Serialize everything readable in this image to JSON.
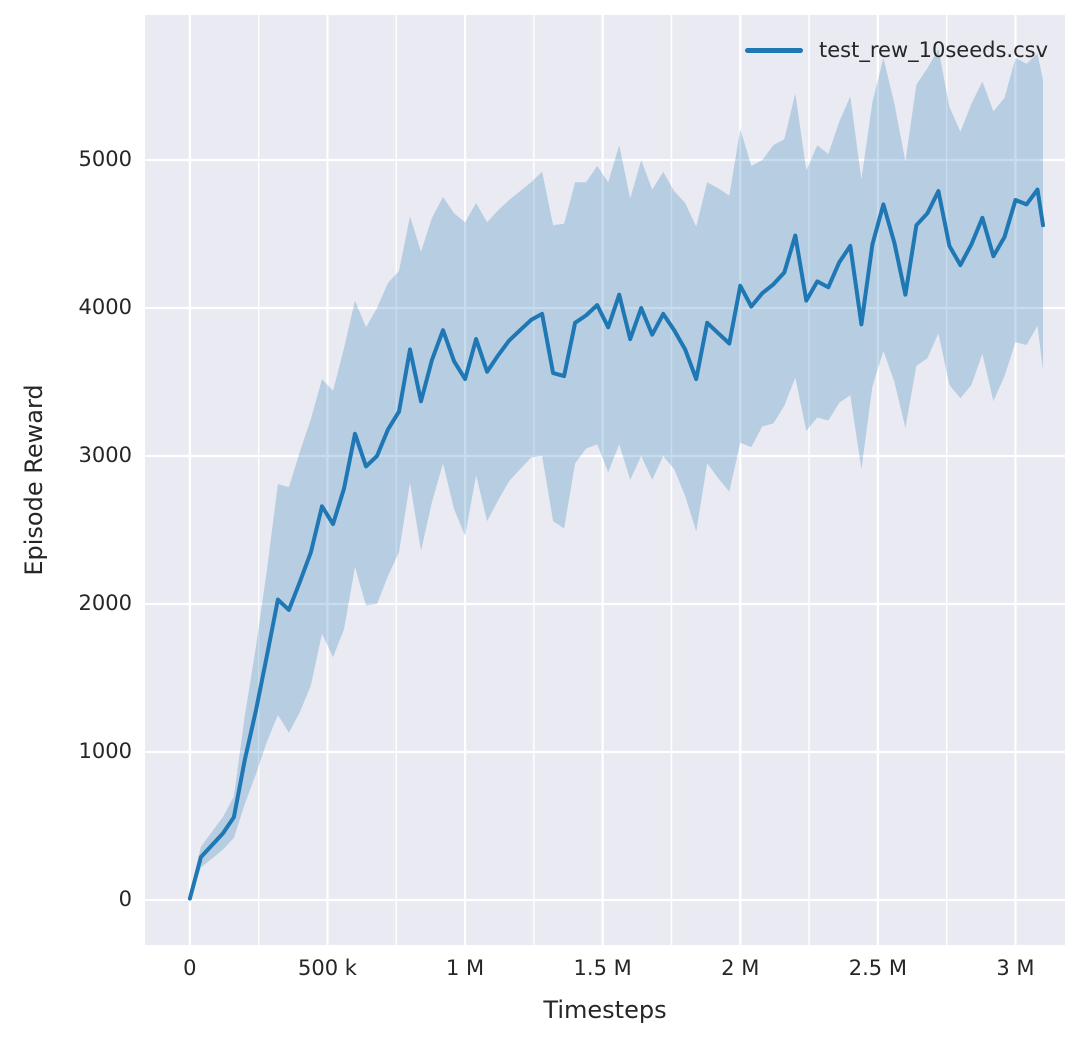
{
  "figure": {
    "bg_color": "#ffffff",
    "axes_bg_color": "#eaeaf2",
    "grid_color": "#ffffff",
    "line_color": "#1f77b4",
    "band_opacity": 0.25,
    "text_color": "#262626"
  },
  "chart_data": {
    "type": "line",
    "title": "",
    "xlabel": "Timesteps",
    "ylabel": "Episode Reward",
    "legend": [
      "test_rew_10seeds.csv"
    ],
    "legend_position": "upper right",
    "grid": "on",
    "xlim": [
      -163000,
      3180000
    ],
    "ylim": [
      -304,
      5980
    ],
    "xticks": {
      "values": [
        0,
        500000,
        1000000,
        1500000,
        2000000,
        2500000,
        3000000
      ],
      "labels": [
        "0",
        "500 k",
        "1 M",
        "1.5 M",
        "2 M",
        "2.5 M",
        "3 M"
      ],
      "minor_step": 250000,
      "minor_max": 3000000
    },
    "yticks": {
      "values": [
        0,
        1000,
        2000,
        3000,
        4000,
        5000
      ],
      "labels": [
        "0",
        "1000",
        "2000",
        "3000",
        "4000",
        "5000"
      ]
    },
    "series": [
      {
        "name": "test_rew_10seeds.csv",
        "x": [
          0,
          40000,
          80000,
          120000,
          160000,
          200000,
          240000,
          280000,
          320000,
          360000,
          400000,
          440000,
          480000,
          520000,
          560000,
          600000,
          640000,
          680000,
          720000,
          760000,
          800000,
          840000,
          880000,
          920000,
          960000,
          1000000,
          1040000,
          1080000,
          1120000,
          1160000,
          1200000,
          1240000,
          1280000,
          1320000,
          1360000,
          1400000,
          1440000,
          1480000,
          1520000,
          1560000,
          1600000,
          1640000,
          1680000,
          1720000,
          1760000,
          1800000,
          1840000,
          1880000,
          1920000,
          1960000,
          2000000,
          2040000,
          2080000,
          2120000,
          2160000,
          2200000,
          2240000,
          2280000,
          2320000,
          2360000,
          2400000,
          2440000,
          2480000,
          2520000,
          2560000,
          2600000,
          2640000,
          2680000,
          2720000,
          2760000,
          2800000,
          2840000,
          2880000,
          2920000,
          2960000,
          3000000,
          3040000,
          3080000,
          3100000
        ],
        "mean": [
          10,
          290,
          370,
          450,
          560,
          950,
          1280,
          1650,
          2030,
          1960,
          2150,
          2350,
          2660,
          2540,
          2780,
          3150,
          2930,
          3000,
          3180,
          3300,
          3720,
          3370,
          3650,
          3850,
          3640,
          3520,
          3790,
          3570,
          3680,
          3780,
          3850,
          3920,
          3960,
          3560,
          3540,
          3900,
          3950,
          4020,
          3870,
          4090,
          3790,
          4000,
          3820,
          3960,
          3850,
          3720,
          3520,
          3900,
          3830,
          3760,
          4150,
          4010,
          4100,
          4160,
          4240,
          4490,
          4050,
          4180,
          4140,
          4310,
          4420,
          3890,
          4430,
          4700,
          4440,
          4090,
          4560,
          4640,
          4790,
          4420,
          4290,
          4430,
          4610,
          4350,
          4480,
          4730,
          4700,
          4800,
          4560
        ],
        "band_halfwidth": [
          30,
          70,
          90,
          110,
          140,
          300,
          430,
          580,
          780,
          830,
          880,
          900,
          860,
          900,
          950,
          900,
          940,
          1000,
          990,
          950,
          900,
          1010,
          960,
          900,
          1000,
          1060,
          920,
          1010,
          980,
          950,
          940,
          930,
          960,
          1000,
          1030,
          950,
          900,
          940,
          980,
          1010,
          950,
          1000,
          980,
          960,
          940,
          990,
          1030,
          950,
          980,
          1000,
          1060,
          950,
          900,
          940,
          900,
          960,
          880,
          920,
          900,
          950,
          1010,
          980,
          960,
          990,
          940,
          900,
          950,
          980,
          960,
          940,
          900,
          950,
          920,
          980,
          940,
          960,
          950,
          920,
          980
        ]
      }
    ]
  }
}
